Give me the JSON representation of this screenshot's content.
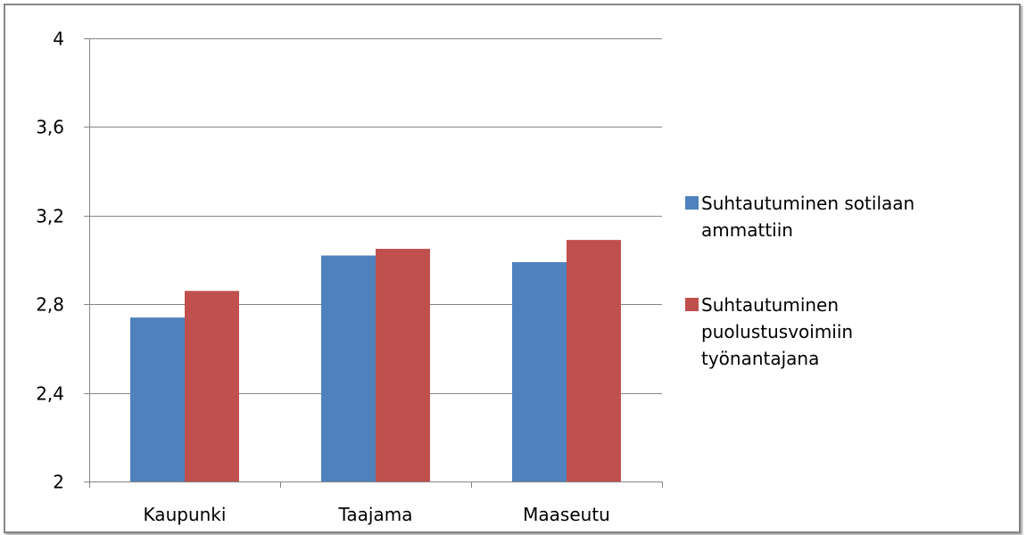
{
  "chart_data": {
    "type": "bar",
    "title": "",
    "xlabel": "",
    "ylabel": "",
    "categories": [
      "Kaupunki",
      "Taajama",
      "Maaseutu"
    ],
    "series": [
      {
        "name": "Suhtautuminen sotilaan ammattiin",
        "values": [
          2.74,
          3.02,
          2.99
        ],
        "color": "#4f81bd",
        "legend_lines": [
          "Suhtautuminen sotilaan",
          "ammattiin"
        ]
      },
      {
        "name": "Suhtautuminen puolustusvoimiin työnantajana",
        "values": [
          2.86,
          3.05,
          3.09
        ],
        "color": "#c0504d",
        "legend_lines": [
          "Suhtautuminen",
          "puolustusvoimiin",
          "työnantajana"
        ]
      }
    ],
    "ylim": [
      2,
      4
    ],
    "yticks": [
      2,
      2.4,
      2.8,
      3.2,
      3.6,
      4
    ],
    "ytick_labels": [
      "2",
      "2,4",
      "2,8",
      "3,2",
      "3,6",
      "4"
    ],
    "grid": true,
    "legend_position": "right"
  }
}
